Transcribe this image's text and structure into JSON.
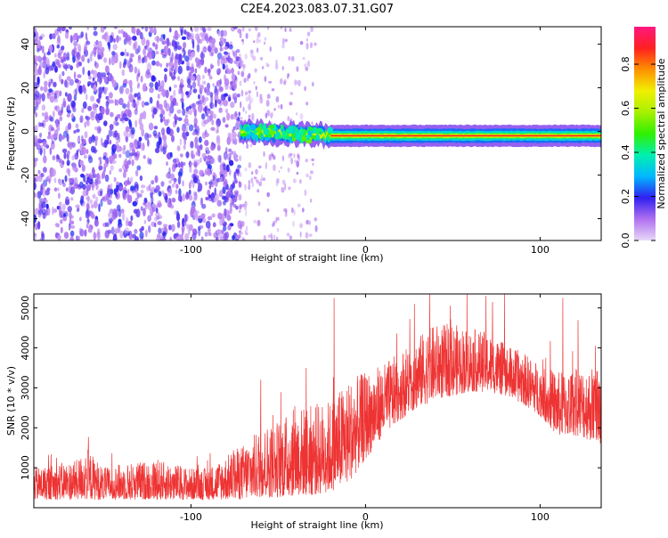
{
  "title": "C2E4.2023.083.07.31.G07",
  "chart_data": [
    {
      "type": "heatmap",
      "xlabel": "Height of straight line (km)",
      "ylabel": "Frequency (Hz)",
      "xlim": [
        -190,
        135
      ],
      "ylim": [
        -50,
        48
      ],
      "x_ticks": [
        {
          "value": -100,
          "label": "-100"
        },
        {
          "value": 0,
          "label": "0"
        },
        {
          "value": 100,
          "label": "100"
        }
      ],
      "y_ticks": [
        {
          "value": -40,
          "label": "-40"
        },
        {
          "value": -20,
          "label": "-20"
        },
        {
          "value": 0,
          "label": "0"
        },
        {
          "value": 20,
          "label": "20"
        },
        {
          "value": 40,
          "label": "40"
        }
      ],
      "noise_region_x": [
        -190,
        -72
      ],
      "sparse_noise_x": [
        -72,
        -28
      ],
      "signal_line": {
        "center_hz": [
          [
            -70,
            0
          ],
          [
            -45,
            -1
          ],
          [
            -20,
            -2
          ],
          [
            0,
            -2
          ],
          [
            50,
            -2
          ],
          [
            100,
            -2
          ],
          [
            135,
            -2
          ]
        ],
        "peak_x": [
          -20,
          135
        ]
      },
      "colorbar": {
        "label": "Normalized spectral amplitude",
        "range": [
          0,
          0.97
        ],
        "ticks": [
          {
            "value": 0.0,
            "label": "0.0"
          },
          {
            "value": 0.2,
            "label": "0.2"
          },
          {
            "value": 0.4,
            "label": "0.4"
          },
          {
            "value": 0.6,
            "label": "0.6"
          },
          {
            "value": 0.8,
            "label": "0.8"
          }
        ]
      }
    },
    {
      "type": "line",
      "xlabel": "Height of straight line (km)",
      "ylabel": "SNR (10 * v/v)",
      "xlim": [
        -190,
        135
      ],
      "ylim": [
        0,
        5350
      ],
      "color": "#ee3333",
      "x_ticks": [
        {
          "value": -100,
          "label": "-100"
        },
        {
          "value": 0,
          "label": "0"
        },
        {
          "value": 100,
          "label": "100"
        }
      ],
      "y_ticks": [
        {
          "value": 1000,
          "label": "1000"
        },
        {
          "value": 2000,
          "label": "2000"
        },
        {
          "value": 3000,
          "label": "3000"
        },
        {
          "value": 4000,
          "label": "4000"
        },
        {
          "value": 5000,
          "label": "5000"
        }
      ],
      "envelope": {
        "x": [
          -190,
          -165,
          -160,
          -150,
          -140,
          -120,
          -100,
          -90,
          -80,
          -70,
          -60,
          -50,
          -40,
          -30,
          -20,
          -10,
          0,
          10,
          20,
          30,
          40,
          50,
          60,
          70,
          80,
          90,
          100,
          110,
          120,
          135
        ],
        "lower": [
          200,
          200,
          200,
          200,
          200,
          200,
          200,
          200,
          200,
          200,
          250,
          250,
          300,
          300,
          400,
          600,
          1200,
          1800,
          2200,
          2500,
          2700,
          2800,
          2900,
          2900,
          2800,
          2600,
          2300,
          1800,
          1800,
          1600
        ],
        "upper": [
          1000,
          1200,
          1500,
          1000,
          1100,
          1200,
          1000,
          1000,
          1300,
          1600,
          2000,
          2200,
          2500,
          2600,
          2700,
          3200,
          3400,
          3600,
          3900,
          4300,
          4600,
          4600,
          4500,
          4400,
          4100,
          3900,
          3600,
          3400,
          3500,
          3600
        ]
      },
      "spikes": [
        [
          -18,
          5250
        ],
        [
          28,
          5100
        ],
        [
          69,
          5300
        ],
        [
          113,
          5250
        ],
        [
          -60,
          3200
        ],
        [
          -34,
          3500
        ],
        [
          90,
          3700
        ]
      ]
    }
  ]
}
